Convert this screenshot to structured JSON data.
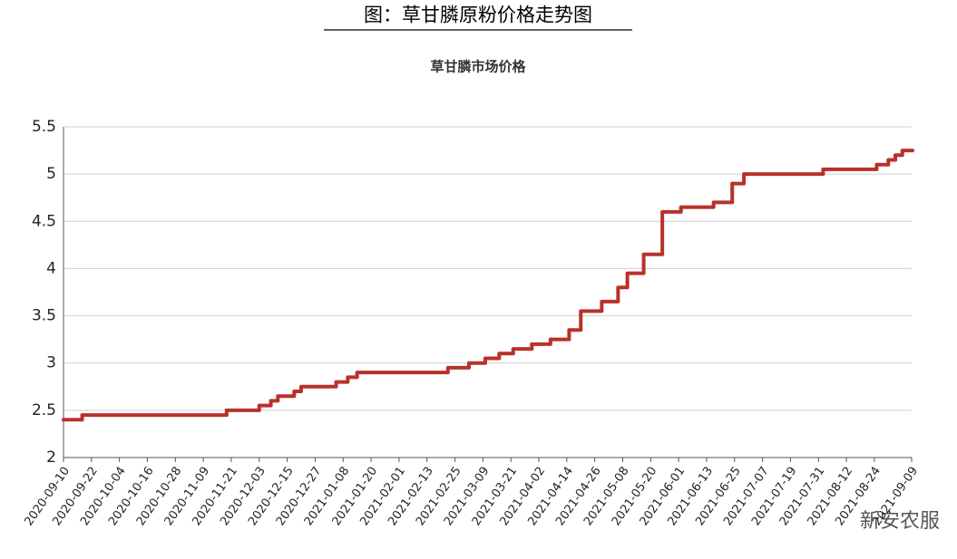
{
  "page_title": "图：草甘膦原粉价格走势图",
  "watermark": "新安农服",
  "chart_data": {
    "type": "line",
    "step": "after",
    "title": "草甘膦市场价格",
    "x": [
      "2020-09-10",
      "2020-09-18",
      "2020-11-19",
      "2020-12-03",
      "2020-12-08",
      "2020-12-11",
      "2020-12-18",
      "2020-12-21",
      "2021-01-05",
      "2021-01-10",
      "2021-01-14",
      "2021-02-22",
      "2021-03-03",
      "2021-03-10",
      "2021-03-16",
      "2021-03-22",
      "2021-03-30",
      "2021-04-07",
      "2021-04-15",
      "2021-04-20",
      "2021-04-29",
      "2021-05-06",
      "2021-05-10",
      "2021-05-17",
      "2021-05-25",
      "2021-06-02",
      "2021-06-16",
      "2021-06-24",
      "2021-06-29",
      "2021-08-02",
      "2021-08-25",
      "2021-08-30",
      "2021-09-02",
      "2021-09-05",
      "2021-09-09"
    ],
    "values": [
      2.4,
      2.45,
      2.5,
      2.55,
      2.6,
      2.65,
      2.7,
      2.75,
      2.8,
      2.85,
      2.9,
      2.95,
      3.0,
      3.05,
      3.1,
      3.15,
      3.2,
      3.25,
      3.35,
      3.55,
      3.65,
      3.8,
      3.95,
      4.15,
      4.6,
      4.65,
      4.7,
      4.9,
      5.0,
      5.05,
      5.1,
      5.15,
      5.2,
      5.25,
      5.25
    ],
    "color": "#b8322a",
    "xlim": [
      "2020-09-10",
      "2021-09-09"
    ],
    "xticks": [
      "2020-09-10",
      "2020-09-22",
      "2020-10-04",
      "2020-10-16",
      "2020-10-28",
      "2020-11-09",
      "2020-11-21",
      "2020-12-03",
      "2020-12-15",
      "2020-12-27",
      "2021-01-08",
      "2021-01-20",
      "2021-02-01",
      "2021-02-13",
      "2021-02-25",
      "2021-03-09",
      "2021-03-21",
      "2021-04-02",
      "2021-04-14",
      "2021-04-26",
      "2021-05-08",
      "2021-05-20",
      "2021-06-01",
      "2021-06-13",
      "2021-06-25",
      "2021-07-07",
      "2021-07-19",
      "2021-07-31",
      "2021-08-12",
      "2021-08-24",
      "2021-09-09"
    ],
    "ylim": [
      2,
      5.5
    ],
    "yticks": [
      2,
      2.5,
      3,
      3.5,
      4,
      4.5,
      5,
      5.5
    ],
    "grid": true
  }
}
